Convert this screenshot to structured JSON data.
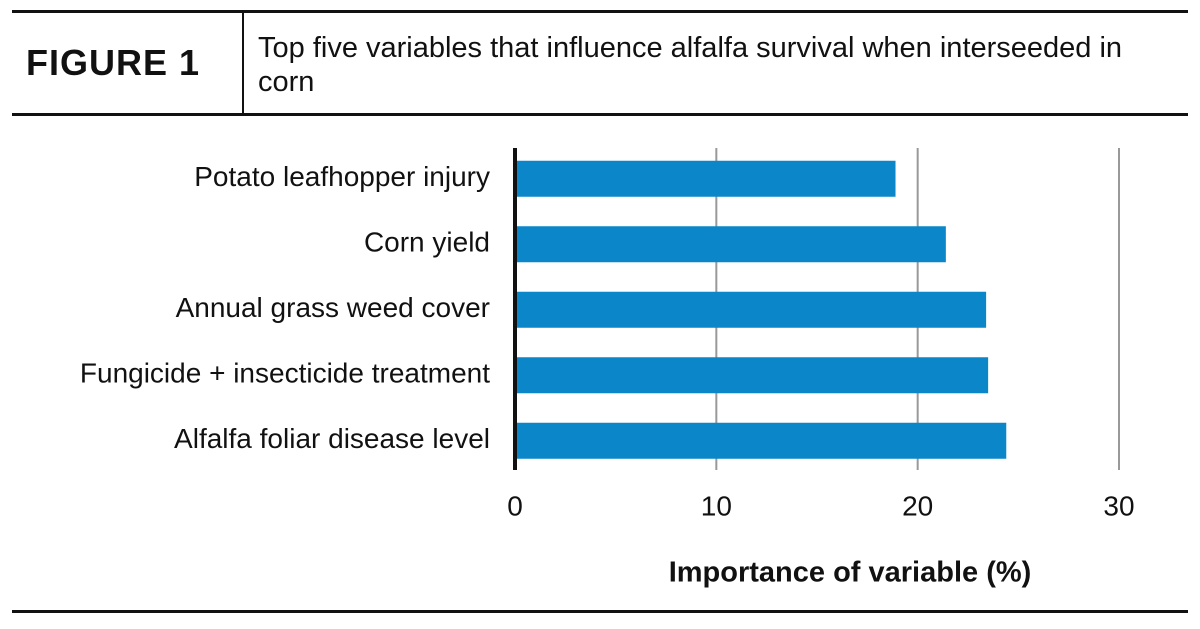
{
  "chart_data": {
    "type": "hbar",
    "label": "FIGURE 1",
    "title": "Top five variables that influence alfalfa survival when interseeded in corn",
    "xlabel": "Importance of variable (%)",
    "categories": [
      "Potato leafhopper injury",
      "Corn yield",
      "Annual grass weed cover",
      "Fungicide + insecticide treatment",
      "Alfalfa foliar disease level"
    ],
    "values": [
      18.9,
      21.4,
      23.4,
      23.5,
      24.4
    ],
    "color": "#0a86c9",
    "xlim": [
      0,
      30
    ],
    "xticks": [
      0,
      10,
      20,
      30
    ],
    "grid": true
  }
}
